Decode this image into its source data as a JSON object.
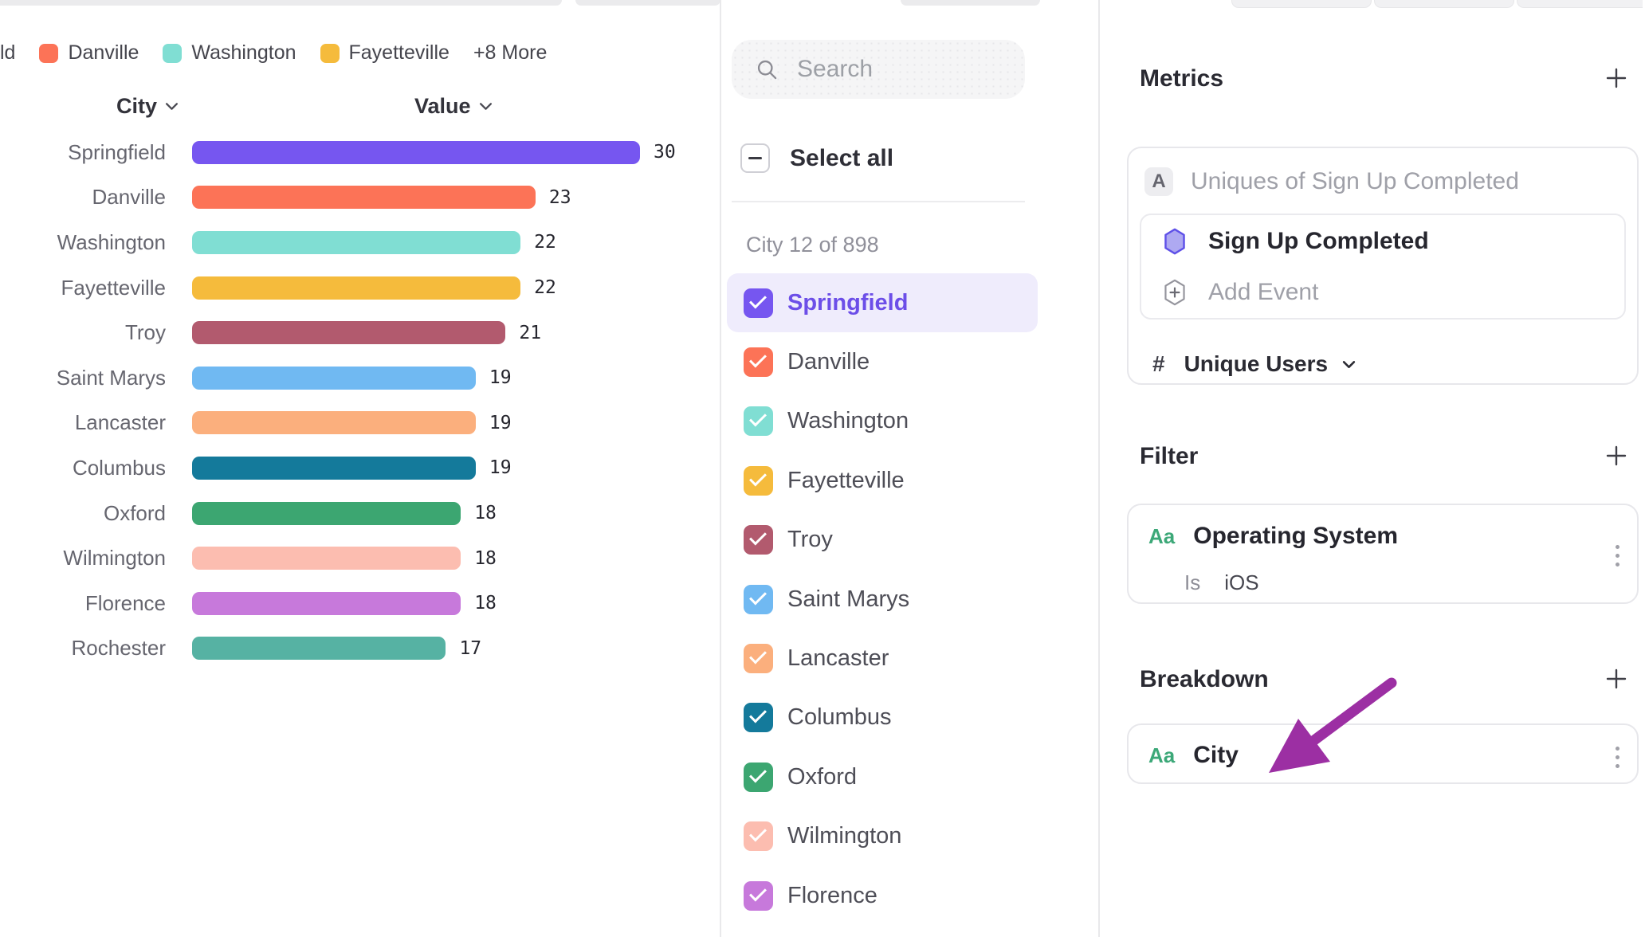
{
  "chart_data": {
    "type": "bar",
    "orientation": "horizontal",
    "column_headers": {
      "category": "City",
      "value": "Value"
    },
    "categories": [
      "Springfield",
      "Danville",
      "Washington",
      "Fayetteville",
      "Troy",
      "Saint Marys",
      "Lancaster",
      "Columbus",
      "Oxford",
      "Wilmington",
      "Florence",
      "Rochester"
    ],
    "values": [
      30,
      23,
      22,
      22,
      21,
      19,
      19,
      19,
      18,
      18,
      18,
      17
    ],
    "bar_colors": [
      "#7656F0",
      "#FC7357",
      "#80DED3",
      "#F5BB3C",
      "#B25A6E",
      "#70B9F2",
      "#FBAF7D",
      "#147A9B",
      "#3CA671",
      "#FCBDB0",
      "#C779DB",
      "#56B2A3"
    ],
    "xlim": [
      0,
      30
    ],
    "value_labels_shown": true,
    "grid": false,
    "legend": {
      "position": "top",
      "cut_item_fragment": "ld",
      "visible_items": [
        "Danville",
        "Washington",
        "Fayetteville"
      ],
      "overflow_label": "+8 More"
    }
  },
  "selector": {
    "search": {
      "placeholder": "Search"
    },
    "select_all": {
      "label": "Select all",
      "state": "indeterminate"
    },
    "group_label": "City 12 of 898",
    "options": [
      {
        "label": "Springfield",
        "checked": true,
        "highlighted": true
      },
      {
        "label": "Danville",
        "checked": true,
        "highlighted": false
      },
      {
        "label": "Washington",
        "checked": true,
        "highlighted": false
      },
      {
        "label": "Fayetteville",
        "checked": true,
        "highlighted": false
      },
      {
        "label": "Troy",
        "checked": true,
        "highlighted": false
      },
      {
        "label": "Saint Marys",
        "checked": true,
        "highlighted": false
      },
      {
        "label": "Lancaster",
        "checked": true,
        "highlighted": false
      },
      {
        "label": "Columbus",
        "checked": true,
        "highlighted": false
      },
      {
        "label": "Oxford",
        "checked": true,
        "highlighted": false
      },
      {
        "label": "Wilmington",
        "checked": true,
        "highlighted": false
      },
      {
        "label": "Florence",
        "checked": true,
        "highlighted": false
      }
    ]
  },
  "inspector": {
    "metrics": {
      "heading": "Metrics",
      "metric_letter": "A",
      "metric_title": "Uniques of Sign Up Completed",
      "event_label": "Sign Up Completed",
      "add_event_label": "Add Event",
      "count_symbol": "#",
      "aggregation_label": "Unique Users"
    },
    "filter": {
      "heading": "Filter",
      "type_badge": "Aa",
      "property": "Operating System",
      "operator": "Is",
      "value": "iOS"
    },
    "breakdown": {
      "heading": "Breakdown",
      "type_badge": "Aa",
      "property": "City"
    }
  },
  "colors": {
    "accent_purple": "#7656F0",
    "selected_row_bg": "#EFECFC",
    "selected_text": "#6C4EE8",
    "badge_green": "#3CA878",
    "annotation_arrow": "#9C2FA3",
    "divider": "#E9E9EB"
  }
}
